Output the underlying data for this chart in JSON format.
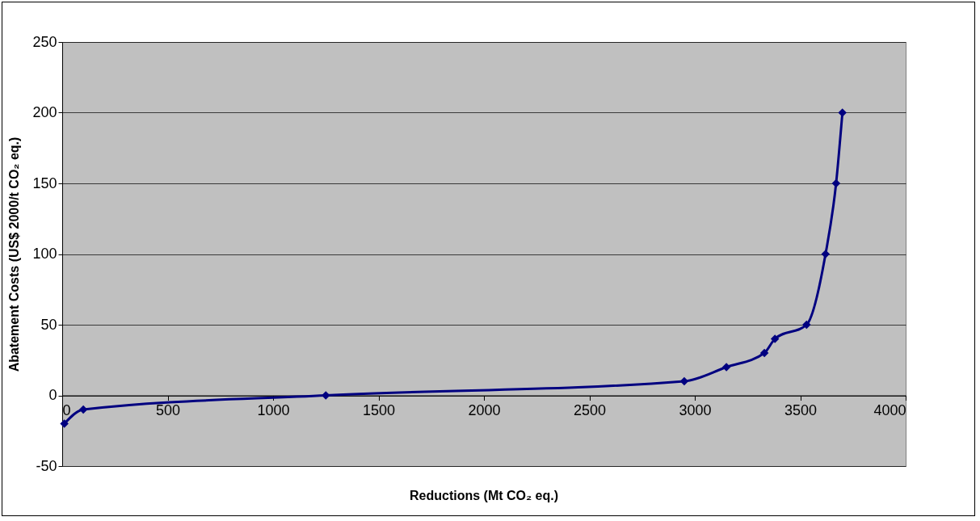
{
  "chart_data": {
    "type": "line",
    "xlabel": "Reductions (Mt CO₂ eq.)",
    "ylabel": "Abatement Costs (US$ 2000/t CO₂ eq.)",
    "x": [
      10,
      100,
      1250,
      2950,
      3150,
      3330,
      3380,
      3530,
      3620,
      3670,
      3700
    ],
    "series": [
      {
        "color": "#000080",
        "values": [
          -20,
          -10,
          0,
          10,
          20,
          30,
          40,
          50,
          100,
          150,
          200
        ]
      }
    ],
    "xlim": [
      0,
      4000
    ],
    "xticks": [
      0,
      500,
      1000,
      1500,
      2000,
      2500,
      3000,
      3500,
      4000
    ],
    "ylim": [
      -50,
      250
    ],
    "yticks": [
      -50,
      0,
      50,
      100,
      150,
      200,
      250
    ],
    "grid": "y",
    "marker": "diamond",
    "line_style": "solid"
  }
}
